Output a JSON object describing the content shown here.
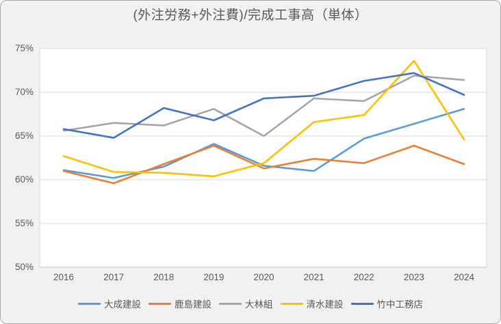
{
  "chart_data": {
    "type": "line",
    "title": "(外注労務+外注費)/完成工事高（単体）",
    "categories": [
      "2016",
      "2017",
      "2018",
      "2019",
      "2020",
      "2021",
      "2022",
      "2023",
      "2024"
    ],
    "ytick_labels": [
      "75%",
      "70%",
      "65%",
      "60%",
      "55%",
      "50%"
    ],
    "ylim": [
      50,
      75
    ],
    "ytick_step": 5,
    "y_unit": "%",
    "grid": "horizontal",
    "legend_position": "bottom",
    "plot_bg": "#ffffff",
    "page_bg": "#f1f1f1",
    "gridline_color": "#d9d9d9",
    "axis_color": "#bfbfbf",
    "text_color": "#595959",
    "series": [
      {
        "name": "大成建設",
        "color": "#5B9BD5",
        "values": [
          61.1,
          60.2,
          61.5,
          64.1,
          61.6,
          61.0,
          64.7,
          66.4,
          68.1
        ]
      },
      {
        "name": "鹿島建設",
        "color": "#ED7D31",
        "values": [
          61.0,
          59.6,
          61.8,
          63.9,
          61.3,
          62.4,
          61.9,
          63.9,
          61.8
        ]
      },
      {
        "name": "大林組",
        "color": "#A5A5A5",
        "values": [
          65.6,
          66.5,
          66.2,
          68.1,
          65.0,
          69.3,
          69.0,
          71.9,
          71.4
        ]
      },
      {
        "name": "清水建設",
        "color": "#FFC000",
        "values": [
          62.7,
          60.9,
          60.8,
          60.4,
          61.9,
          66.6,
          67.4,
          73.6,
          64.6
        ]
      },
      {
        "name": "竹中工務店",
        "color": "#4472C4",
        "values": [
          65.8,
          64.8,
          68.2,
          66.8,
          69.3,
          69.6,
          71.3,
          72.2,
          69.7
        ]
      }
    ]
  }
}
